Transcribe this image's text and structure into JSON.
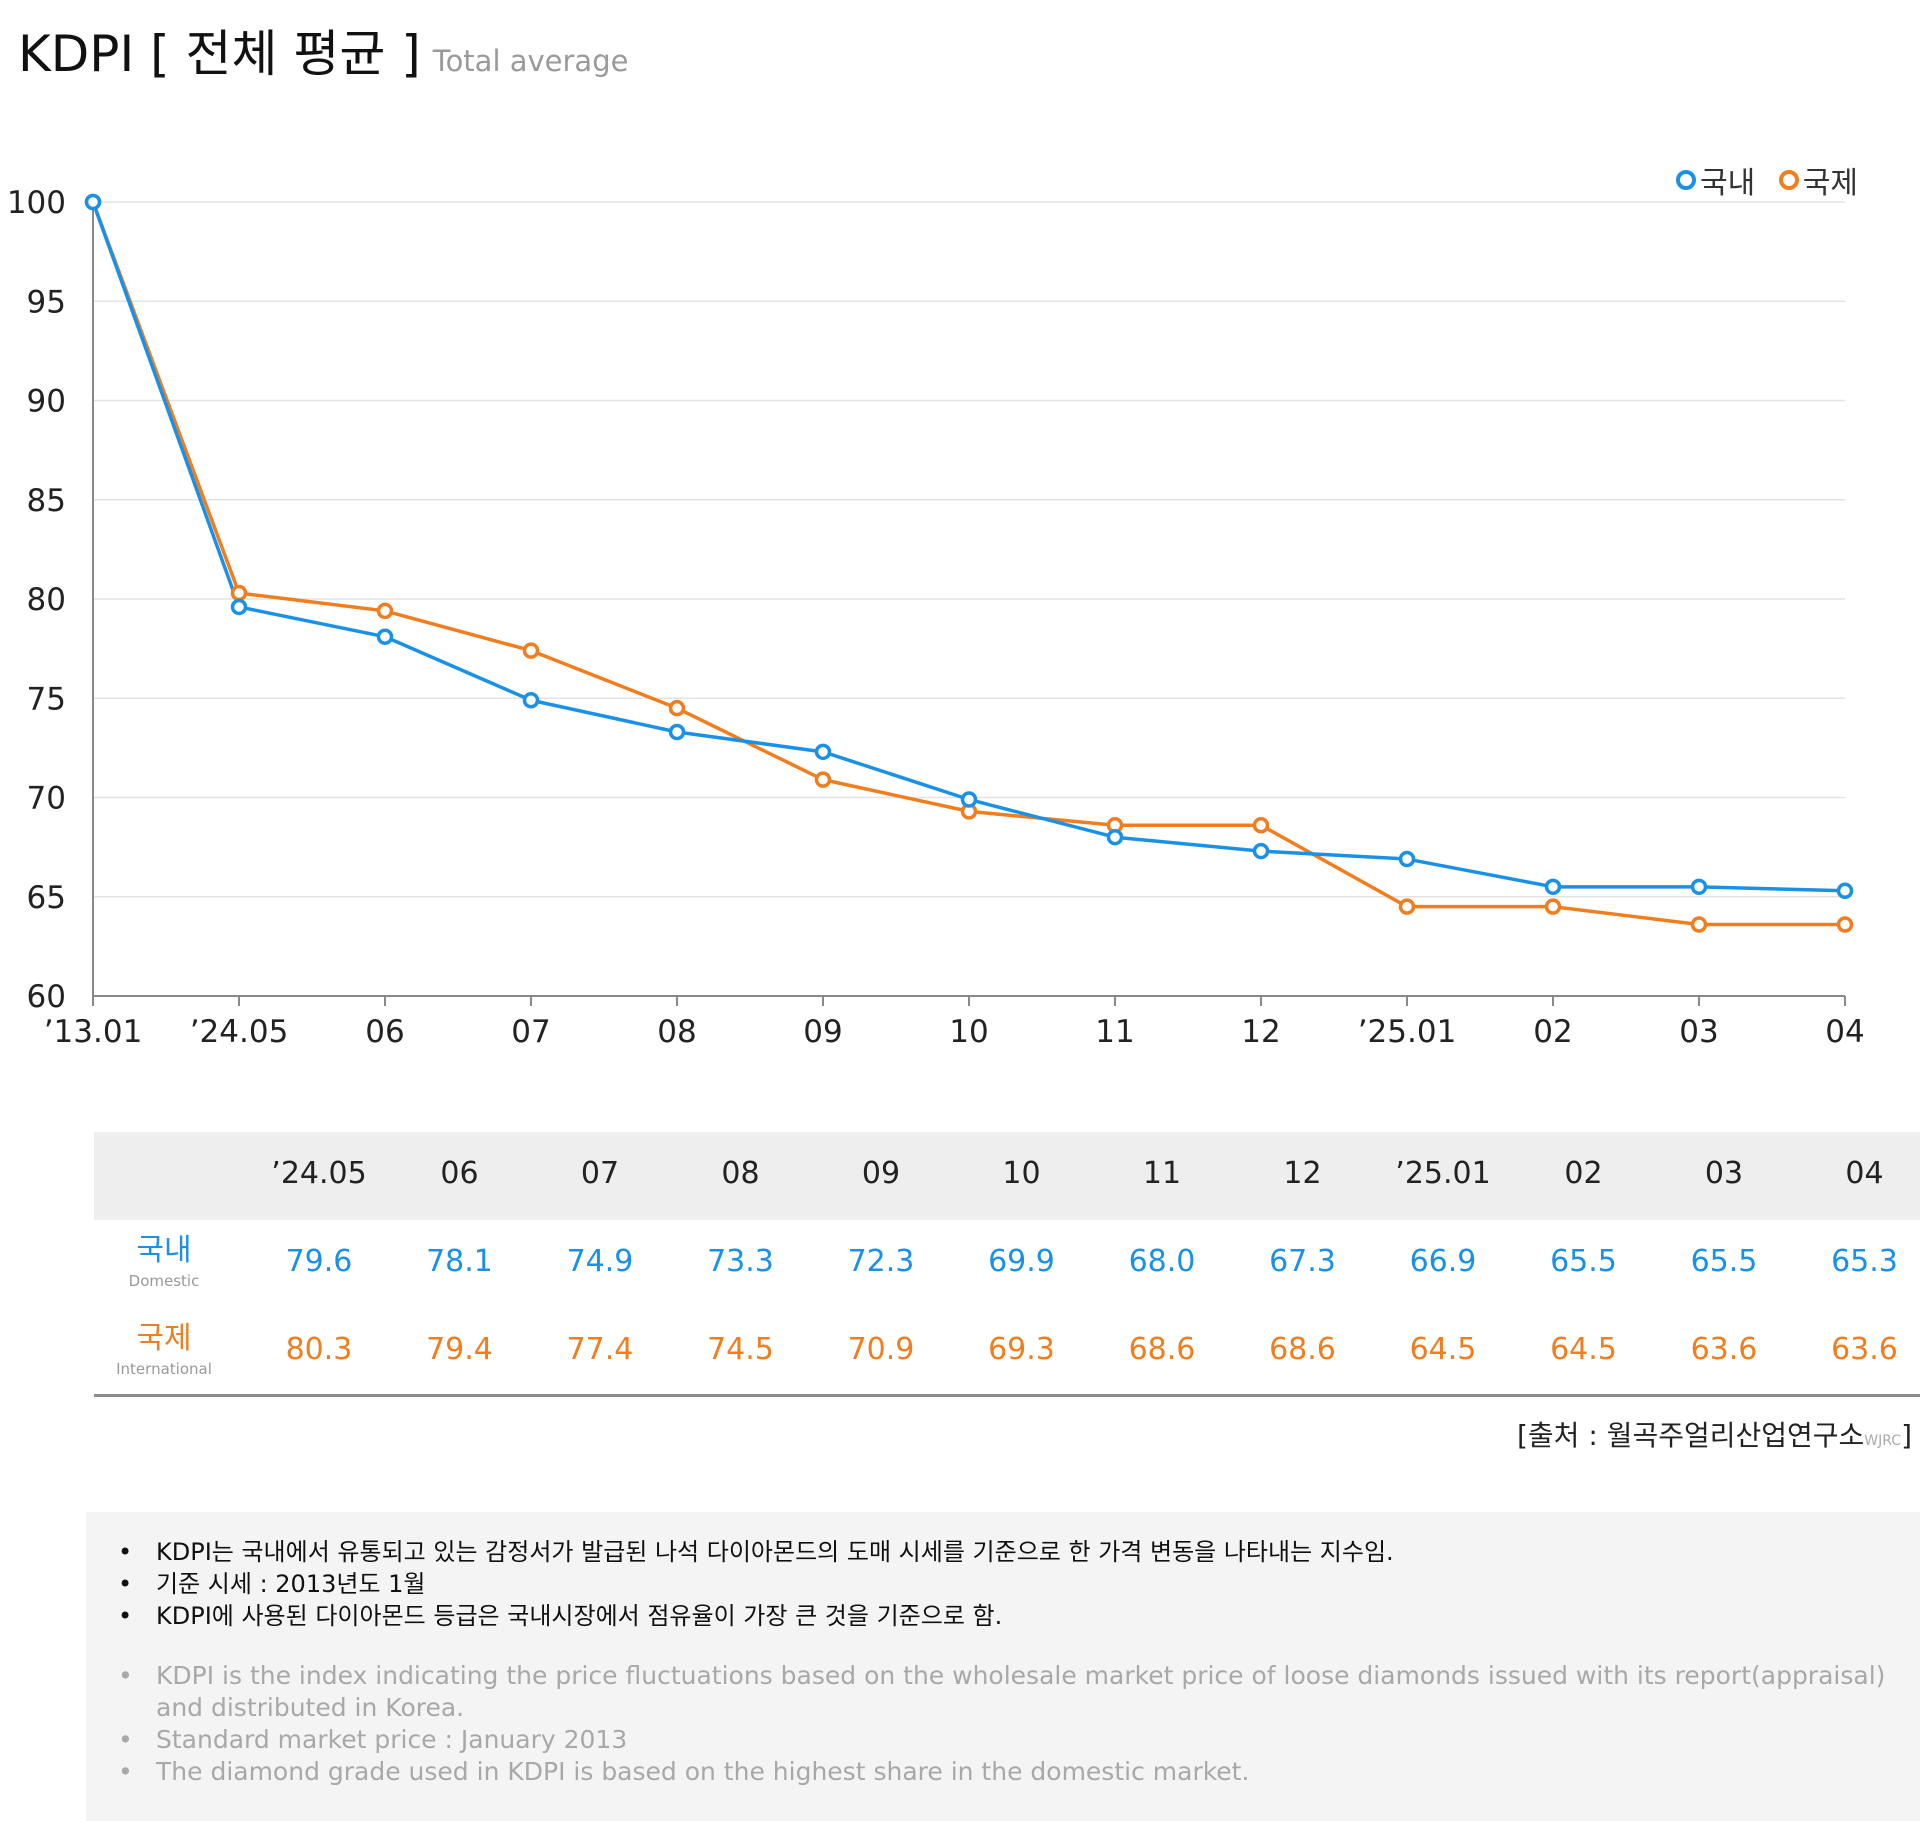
{
  "header": {
    "title": "KDPI [ 전체 평균 ]",
    "subtitle": "Total average"
  },
  "colors": {
    "domestic": "#1a91e6",
    "international": "#f07d1e",
    "grid": "#e3e3e3",
    "axis": "#888888"
  },
  "legend": {
    "domestic": "국내",
    "international": "국제"
  },
  "chart_data": {
    "type": "line",
    "title": "",
    "xlabel": "",
    "ylabel": "",
    "categories": [
      "’13.01",
      "’24.05",
      "06",
      "07",
      "08",
      "09",
      "10",
      "11",
      "12",
      "’25.01",
      "02",
      "03",
      "04"
    ],
    "ylim": [
      60,
      100
    ],
    "yticks": [
      60,
      65,
      70,
      75,
      80,
      85,
      90,
      95,
      100
    ],
    "grid": true,
    "legend_position": "top-right",
    "series": [
      {
        "name": "국내",
        "values": [
          100,
          79.6,
          78.1,
          74.9,
          73.3,
          72.3,
          69.9,
          68.0,
          67.3,
          66.9,
          65.5,
          65.5,
          65.3
        ]
      },
      {
        "name": "국제",
        "values": [
          100,
          80.3,
          79.4,
          77.4,
          74.5,
          70.9,
          69.3,
          68.6,
          68.6,
          64.5,
          64.5,
          63.6,
          63.6
        ]
      }
    ]
  },
  "table": {
    "headers": [
      "’24.05",
      "06",
      "07",
      "08",
      "09",
      "10",
      "11",
      "12",
      "’25.01",
      "02",
      "03",
      "04"
    ],
    "domestic": {
      "label": "국내",
      "sublabel": "Domestic",
      "values": [
        "79.6",
        "78.1",
        "74.9",
        "73.3",
        "72.3",
        "69.9",
        "68.0",
        "67.3",
        "66.9",
        "65.5",
        "65.5",
        "65.3"
      ]
    },
    "international": {
      "label": "국제",
      "sublabel": "International",
      "values": [
        "80.3",
        "79.4",
        "77.4",
        "74.5",
        "70.9",
        "69.3",
        "68.6",
        "68.6",
        "64.5",
        "64.5",
        "63.6",
        "63.6"
      ]
    }
  },
  "source": {
    "text": "[출처 : 월곡주얼리산업연구소",
    "small": "WJRC",
    "close": "]"
  },
  "notes": {
    "ko": [
      "KDPI는 국내에서 유통되고 있는 감정서가 발급된 나석 다이아몬드의 도매 시세를 기준으로 한 가격 변동을 나타내는 지수임.",
      "기준 시세 : 2013년도 1월",
      "KDPI에 사용된 다이아몬드 등급은 국내시장에서 점유율이 가장 큰 것을 기준으로 함."
    ],
    "en": [
      "KDPI is the index indicating the price fluctuations based on the wholesale market price of loose diamonds issued with its report(appraisal) and distributed in Korea.",
      "Standard market price : January 2013",
      "The diamond grade used in KDPI is based on the highest share in the domestic market."
    ]
  }
}
